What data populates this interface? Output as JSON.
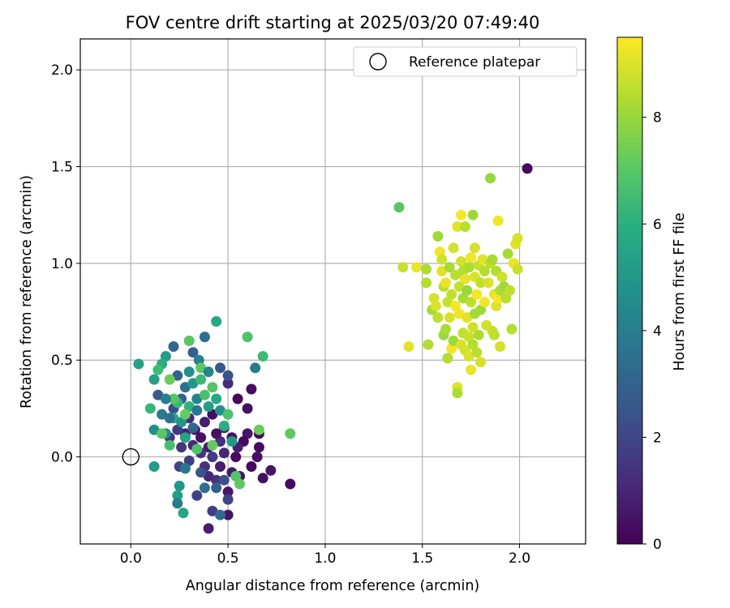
{
  "chart_data": {
    "type": "scatter",
    "title": "FOV centre drift starting at 2025/03/20 07:49:40",
    "xlabel": "Angular distance from reference (arcmin)",
    "ylabel": "Rotation from reference (arcmin)",
    "xlim": [
      -0.26,
      2.34
    ],
    "ylim": [
      -0.45,
      2.16
    ],
    "xticks": [
      "0.0",
      "0.5",
      "1.0",
      "1.5",
      "2.0"
    ],
    "yticks": [
      "0.0",
      "0.5",
      "1.0",
      "1.5",
      "2.0"
    ],
    "grid": true,
    "legend": {
      "position": "top-right",
      "entries": [
        "Reference platepar"
      ]
    },
    "reference_point": {
      "label": "Reference platepar",
      "x": 0.0,
      "y": 0.0
    },
    "colorbar": {
      "label": "Hours from first FF file",
      "colormap": "viridis",
      "range": [
        0,
        9.5
      ],
      "ticks": [
        "0",
        "2",
        "4",
        "6",
        "8"
      ]
    },
    "points": [
      [
        2.04,
        1.49,
        0.2
      ],
      [
        0.82,
        -0.14,
        0.3
      ],
      [
        0.72,
        -0.07,
        0.5
      ],
      [
        0.68,
        -0.11,
        0.4
      ],
      [
        0.66,
        0.05,
        0.3
      ],
      [
        0.66,
        0.12,
        0.2
      ],
      [
        0.65,
        0.0,
        0.4
      ],
      [
        0.62,
        -0.05,
        0.3
      ],
      [
        0.6,
        0.12,
        0.6
      ],
      [
        0.58,
        0.08,
        0.2
      ],
      [
        0.56,
        -0.1,
        0.5
      ],
      [
        0.55,
        0.05,
        0.8
      ],
      [
        0.54,
        0.0,
        0.3
      ],
      [
        0.52,
        -0.08,
        0.7
      ],
      [
        0.52,
        0.1,
        0.4
      ],
      [
        0.5,
        -0.18,
        0.6
      ],
      [
        0.5,
        -0.3,
        0.5
      ],
      [
        0.48,
        0.02,
        1.0
      ],
      [
        0.48,
        0.15,
        0.9
      ],
      [
        0.46,
        -0.05,
        0.8
      ],
      [
        0.46,
        0.08,
        1.2
      ],
      [
        0.44,
        0.12,
        0.5
      ],
      [
        0.44,
        -0.12,
        1.4
      ],
      [
        0.42,
        0.0,
        1.6
      ],
      [
        0.42,
        0.22,
        0.3
      ],
      [
        0.4,
        -0.1,
        1.0
      ],
      [
        0.4,
        0.05,
        0.7
      ],
      [
        0.38,
        0.18,
        0.8
      ],
      [
        0.38,
        -0.05,
        1.3
      ],
      [
        0.36,
        0.02,
        1.5
      ],
      [
        0.36,
        0.1,
        0.4
      ],
      [
        0.34,
        -0.2,
        1.8
      ],
      [
        0.33,
        0.14,
        0.6
      ],
      [
        0.32,
        0.06,
        1.1
      ],
      [
        0.3,
        -0.02,
        1.7
      ],
      [
        0.3,
        0.2,
        1.2
      ],
      [
        0.28,
        0.12,
        0.9
      ],
      [
        0.26,
        0.05,
        1.4
      ],
      [
        0.25,
        -0.05,
        2.0
      ],
      [
        0.24,
        0.14,
        1.6
      ],
      [
        0.22,
        0.25,
        2.2
      ],
      [
        0.2,
        0.1,
        1.5
      ],
      [
        0.55,
        0.3,
        0.2
      ],
      [
        0.6,
        0.25,
        0.4
      ],
      [
        0.62,
        0.35,
        0.3
      ],
      [
        0.5,
        0.38,
        1.1
      ],
      [
        0.4,
        -0.37,
        0.8
      ],
      [
        0.42,
        -0.28,
        1.7
      ],
      [
        0.5,
        -0.22,
        1.9
      ],
      [
        0.48,
        -0.12,
        2.3
      ],
      [
        0.46,
        0.46,
        2.6
      ],
      [
        0.5,
        0.42,
        2.4
      ],
      [
        0.32,
        0.54,
        2.9
      ],
      [
        0.22,
        0.57,
        3.2
      ],
      [
        0.38,
        0.62,
        3.5
      ],
      [
        0.44,
        0.7,
        5.6
      ],
      [
        0.6,
        0.62,
        6.8
      ],
      [
        0.64,
        0.46,
        3.9
      ],
      [
        0.68,
        0.52,
        6.4
      ],
      [
        0.35,
        0.5,
        4.1
      ],
      [
        0.3,
        0.44,
        4.8
      ],
      [
        0.28,
        0.36,
        3.4
      ],
      [
        0.26,
        0.3,
        2.8
      ],
      [
        0.24,
        0.42,
        3.0
      ],
      [
        0.18,
        0.52,
        5.2
      ],
      [
        0.16,
        0.48,
        5.9
      ],
      [
        0.14,
        0.45,
        6.5
      ],
      [
        0.12,
        0.4,
        5.4
      ],
      [
        0.1,
        0.25,
        6.3
      ],
      [
        0.12,
        0.14,
        4.6
      ],
      [
        0.14,
        0.32,
        2.7
      ],
      [
        0.16,
        0.22,
        3.9
      ],
      [
        0.18,
        0.12,
        4.4
      ],
      [
        0.2,
        0.06,
        6.6
      ],
      [
        0.22,
        0.2,
        5.8
      ],
      [
        0.24,
        0.28,
        6.2
      ],
      [
        0.26,
        0.18,
        4.9
      ],
      [
        0.28,
        0.1,
        5.5
      ],
      [
        0.3,
        0.26,
        6.1
      ],
      [
        0.32,
        0.38,
        5.0
      ],
      [
        0.34,
        0.3,
        4.2
      ],
      [
        0.36,
        0.4,
        6.4
      ],
      [
        0.38,
        0.32,
        6.7
      ],
      [
        0.4,
        0.26,
        5.3
      ],
      [
        0.42,
        0.36,
        6.9
      ],
      [
        0.44,
        0.3,
        5.7
      ],
      [
        0.46,
        0.24,
        4.7
      ],
      [
        0.48,
        0.16,
        6.0
      ],
      [
        0.5,
        0.22,
        6.8
      ],
      [
        0.52,
        0.08,
        5.1
      ],
      [
        0.54,
        -0.1,
        6.9
      ],
      [
        0.56,
        -0.14,
        7.1
      ],
      [
        0.42,
        0.06,
        7.2
      ],
      [
        0.36,
        0.46,
        7.1
      ],
      [
        0.3,
        0.6,
        7.0
      ],
      [
        0.2,
        0.4,
        7.3
      ],
      [
        0.16,
        0.12,
        7.0
      ],
      [
        0.22,
        0.3,
        7.0
      ],
      [
        0.28,
        0.22,
        7.2
      ],
      [
        0.34,
        0.04,
        6.8
      ],
      [
        0.66,
        0.14,
        7.3
      ],
      [
        0.82,
        0.12,
        7.1
      ],
      [
        0.24,
        -0.2,
        5.3
      ],
      [
        0.25,
        -0.15,
        5.0
      ],
      [
        0.27,
        -0.29,
        5.6
      ],
      [
        0.12,
        -0.05,
        5.2
      ],
      [
        0.04,
        0.48,
        5.4
      ],
      [
        0.24,
        -0.24,
        4.0
      ],
      [
        0.28,
        -0.06,
        3.8
      ],
      [
        0.32,
        0.15,
        3.1
      ],
      [
        0.34,
        0.24,
        3.7
      ],
      [
        0.38,
        -0.16,
        3.4
      ],
      [
        0.4,
        0.44,
        4.3
      ],
      [
        0.44,
        -0.16,
        2.9
      ],
      [
        0.46,
        -0.3,
        3.3
      ],
      [
        0.36,
        -0.08,
        2.5
      ],
      [
        0.2,
        0.2,
        3.6
      ],
      [
        0.18,
        0.3,
        4.1
      ],
      [
        1.38,
        1.29,
        7.0
      ],
      [
        1.4,
        0.98,
        8.7
      ],
      [
        1.43,
        0.57,
        9.1
      ],
      [
        1.47,
        0.98,
        9.2
      ],
      [
        1.52,
        0.97,
        8.3
      ],
      [
        1.52,
        0.9,
        8.4
      ],
      [
        1.53,
        0.58,
        8.4
      ],
      [
        1.55,
        0.76,
        8.2
      ],
      [
        1.56,
        0.82,
        8.9
      ],
      [
        1.57,
        0.78,
        9.0
      ],
      [
        1.58,
        1.14,
        8.1
      ],
      [
        1.58,
        0.72,
        8.6
      ],
      [
        1.59,
        1.06,
        9.3
      ],
      [
        1.6,
        0.96,
        9.1
      ],
      [
        1.6,
        1.02,
        8.8
      ],
      [
        1.61,
        0.88,
        8.5
      ],
      [
        1.61,
        0.63,
        8.0
      ],
      [
        1.62,
        0.66,
        8.3
      ],
      [
        1.62,
        0.9,
        9.2
      ],
      [
        1.63,
        0.8,
        8.7
      ],
      [
        1.63,
        0.51,
        8.4
      ],
      [
        1.64,
        0.98,
        8.2
      ],
      [
        1.64,
        0.72,
        9.0
      ],
      [
        1.65,
        0.84,
        8.6
      ],
      [
        1.65,
        0.56,
        9.3
      ],
      [
        1.66,
        1.08,
        8.9
      ],
      [
        1.66,
        0.6,
        8.1
      ],
      [
        1.67,
        0.94,
        8.5
      ],
      [
        1.67,
        0.78,
        9.4
      ],
      [
        1.68,
        1.19,
        9.1
      ],
      [
        1.68,
        0.36,
        9.0
      ],
      [
        1.68,
        0.33,
        8.3
      ],
      [
        1.69,
        0.88,
        8.7
      ],
      [
        1.69,
        0.74,
        9.3
      ],
      [
        1.7,
        1.25,
        9.4
      ],
      [
        1.7,
        1.01,
        8.8
      ],
      [
        1.7,
        0.58,
        9.0
      ],
      [
        1.71,
        0.96,
        8.4
      ],
      [
        1.71,
        0.82,
        8.2
      ],
      [
        1.71,
        0.64,
        8.6
      ],
      [
        1.72,
        1.19,
        8.5
      ],
      [
        1.72,
        0.92,
        9.2
      ],
      [
        1.72,
        0.55,
        8.9
      ],
      [
        1.73,
        0.72,
        9.1
      ],
      [
        1.73,
        0.86,
        8.0
      ],
      [
        1.74,
        0.98,
        8.3
      ],
      [
        1.74,
        0.62,
        8.7
      ],
      [
        1.74,
        0.52,
        9.0
      ],
      [
        1.75,
        1.03,
        9.3
      ],
      [
        1.75,
        0.8,
        8.6
      ],
      [
        1.75,
        0.45,
        9.2
      ],
      [
        1.76,
        1.25,
        8.1
      ],
      [
        1.76,
        0.67,
        8.8
      ],
      [
        1.76,
        0.58,
        8.4
      ],
      [
        1.77,
        1.08,
        8.9
      ],
      [
        1.77,
        0.93,
        9.0
      ],
      [
        1.77,
        0.74,
        8.2
      ],
      [
        1.78,
        0.84,
        9.4
      ],
      [
        1.78,
        0.54,
        8.5
      ],
      [
        1.79,
        0.99,
        8.7
      ],
      [
        1.79,
        0.63,
        8.3
      ],
      [
        1.8,
        0.9,
        8.6
      ],
      [
        1.8,
        0.49,
        8.9
      ],
      [
        1.8,
        0.76,
        8.1
      ],
      [
        1.81,
        1.02,
        9.1
      ],
      [
        1.82,
        0.96,
        8.4
      ],
      [
        1.82,
        0.8,
        9.3
      ],
      [
        1.83,
        0.68,
        8.8
      ],
      [
        1.84,
        0.9,
        9.0
      ],
      [
        1.85,
        1.44,
        8.0
      ],
      [
        1.85,
        1.0,
        8.5
      ],
      [
        1.86,
        1.02,
        8.2
      ],
      [
        1.86,
        0.65,
        8.7
      ],
      [
        1.87,
        0.63,
        8.6
      ],
      [
        1.87,
        0.84,
        9.2
      ],
      [
        1.88,
        0.78,
        9.0
      ],
      [
        1.88,
        0.96,
        8.4
      ],
      [
        1.89,
        1.22,
        9.3
      ],
      [
        1.89,
        0.82,
        9.4
      ],
      [
        1.9,
        0.57,
        8.9
      ],
      [
        1.9,
        0.86,
        8.3
      ],
      [
        1.91,
        0.93,
        8.8
      ],
      [
        1.92,
        0.88,
        8.1
      ],
      [
        1.93,
        0.82,
        8.5
      ],
      [
        1.94,
        1.05,
        8.2
      ],
      [
        1.95,
        0.86,
        8.6
      ],
      [
        1.96,
        0.66,
        8.4
      ],
      [
        1.97,
        1.0,
        9.2
      ],
      [
        1.98,
        1.1,
        9.1
      ],
      [
        1.99,
        0.97,
        8.7
      ],
      [
        1.99,
        1.13,
        8.9
      ]
    ]
  }
}
